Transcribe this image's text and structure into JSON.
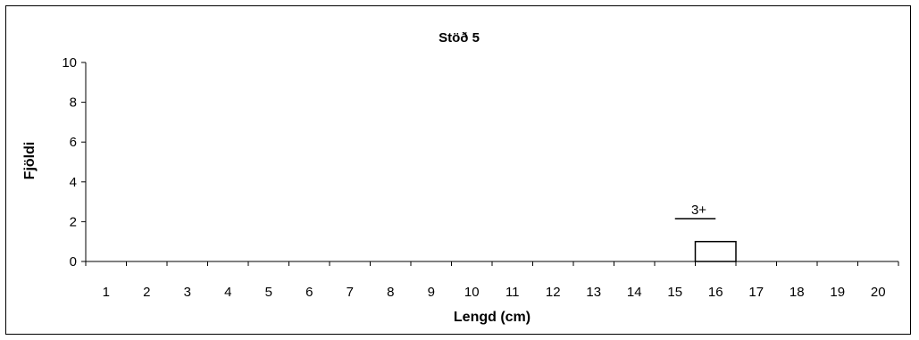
{
  "chart_data": {
    "type": "bar",
    "title": "Stöð 5",
    "xlabel": "Lengd (cm)",
    "ylabel": "Fjöldi",
    "categories": [
      "1",
      "2",
      "3",
      "4",
      "5",
      "6",
      "7",
      "8",
      "9",
      "10",
      "11",
      "12",
      "13",
      "14",
      "15",
      "16",
      "17",
      "18",
      "19",
      "20"
    ],
    "values": [
      0,
      0,
      0,
      0,
      0,
      0,
      0,
      0,
      0,
      0,
      0,
      0,
      0,
      0,
      0,
      1,
      0,
      0,
      0,
      0
    ],
    "ylim": [
      0,
      10
    ],
    "yticks": [
      0,
      2,
      4,
      6,
      8,
      10
    ],
    "grid": false,
    "legend": "none",
    "bar_fill": "#ffffff",
    "bar_stroke": "#000000",
    "annotations": [
      {
        "text": "3+",
        "x_from": "15",
        "x_to": "16"
      }
    ]
  }
}
